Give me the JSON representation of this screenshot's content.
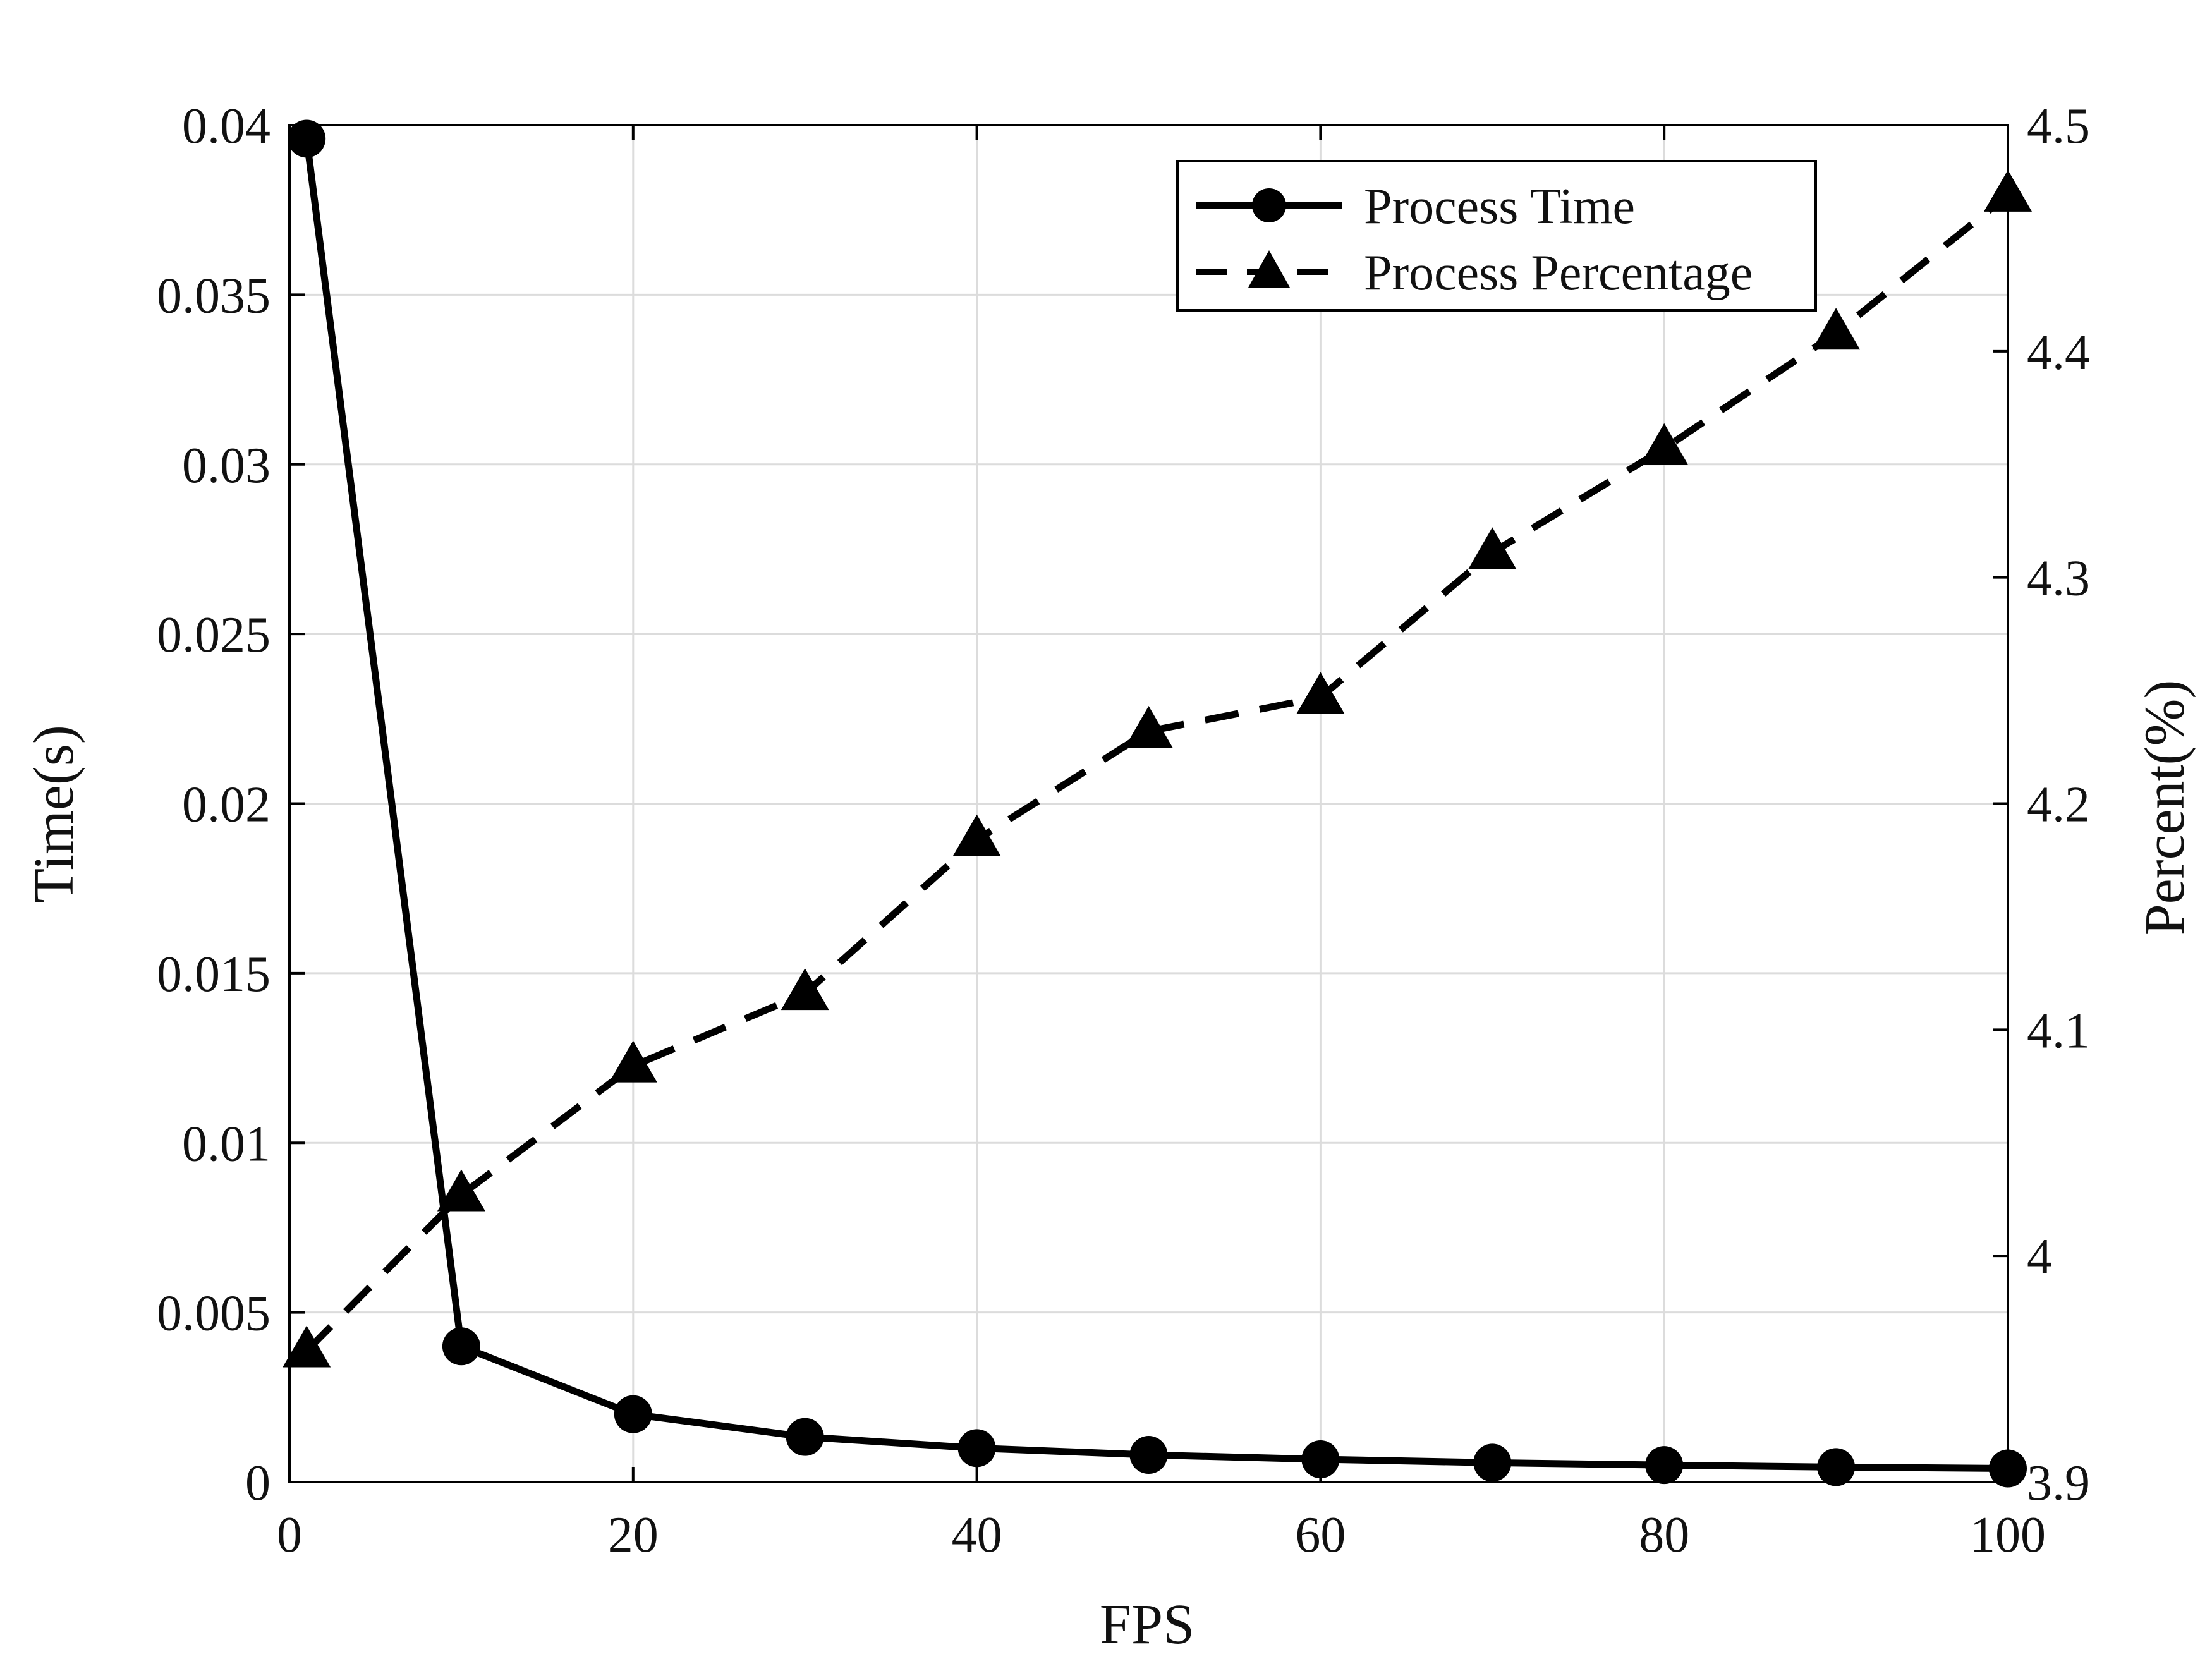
{
  "chart_data": {
    "type": "line",
    "title": "",
    "xlabel": "FPS",
    "ylabel_left": "Time(s)",
    "ylabel_right": "Percent(%)",
    "x": [
      1,
      10,
      20,
      30,
      40,
      50,
      60,
      70,
      80,
      90,
      100
    ],
    "xlim": [
      0,
      100
    ],
    "xticks": [
      0,
      20,
      40,
      60,
      80,
      100
    ],
    "xtick_labels": [
      "0",
      "20",
      "40",
      "60",
      "80",
      "100"
    ],
    "ylim_left": [
      0,
      0.04
    ],
    "yticks_left": [
      0,
      0.005,
      0.01,
      0.015,
      0.02,
      0.025,
      0.03,
      0.035,
      0.04
    ],
    "ytick_labels_left": [
      "0",
      "0.005",
      "0.01",
      "0.015",
      "0.02",
      "0.025",
      "0.03",
      "0.035",
      "0.04"
    ],
    "ylim_right": [
      3.9,
      4.5
    ],
    "yticks_right": [
      3.9,
      4.0,
      4.1,
      4.2,
      4.3,
      4.4,
      4.5
    ],
    "ytick_labels_right": [
      "3.9",
      "4",
      "4.1",
      "4.2",
      "4.3",
      "4.4",
      "4.5"
    ],
    "grid": true,
    "legend_position": "top-right",
    "series": [
      {
        "name": "Process Time",
        "axis": "left",
        "marker": "circle",
        "line_style": "solid",
        "color": "#000000",
        "values": [
          0.0396,
          0.004,
          0.002,
          0.00133,
          0.001,
          0.0008,
          0.00067,
          0.00057,
          0.0005,
          0.00044,
          0.0004
        ]
      },
      {
        "name": "Process Percentage",
        "axis": "right",
        "marker": "triangle",
        "line_style": "dashed",
        "color": "#000000",
        "values": [
          3.958,
          4.027,
          4.084,
          4.116,
          4.184,
          4.232,
          4.247,
          4.311,
          4.357,
          4.408,
          4.469
        ]
      }
    ]
  }
}
